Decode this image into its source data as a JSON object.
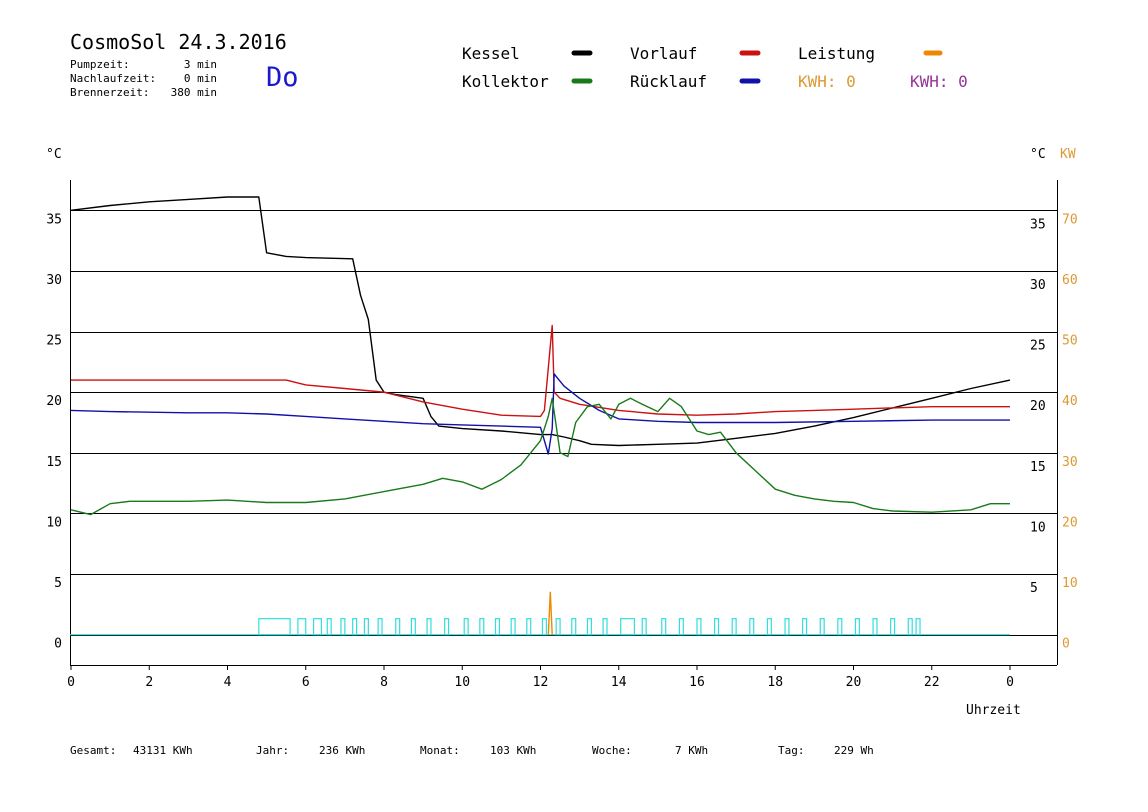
{
  "header": {
    "title": "CosmoSol 24.3.2016",
    "weekday": "Do",
    "info": [
      {
        "label": "Pumpzeit:",
        "value": "3 min"
      },
      {
        "label": "Nachlaufzeit:",
        "value": "0 min"
      },
      {
        "label": "Brennerzeit:",
        "value": "380 min"
      }
    ]
  },
  "legend": {
    "kessel": "Kessel",
    "kollektor": "Kollektor",
    "vorlauf": "Vorlauf",
    "ruecklauf": "Rücklauf",
    "leistung": "Leistung",
    "kwh_orange": "KWH: 0",
    "kwh_purple": "KWH: 0"
  },
  "colors": {
    "kessel": "#000000",
    "kollektor": "#1a7a1a",
    "vorlauf": "#cc1111",
    "ruecklauf": "#1111aa",
    "leistung": "#ee8800",
    "pump": "#33dddd",
    "kwh_orange": "#dd9933",
    "kwh_purple": "#993399",
    "weekday": "#1a1acc"
  },
  "footer": [
    {
      "label": "Gesamt:",
      "value": "43131 KWh"
    },
    {
      "label": "Jahr:",
      "value": "236 KWh"
    },
    {
      "label": "Monat:",
      "value": "103 KWh"
    },
    {
      "label": "Woche:",
      "value": "7 KWh"
    },
    {
      "label": "Tag:",
      "value": "229 Wh"
    }
  ],
  "chart_data": {
    "type": "line",
    "xlabel": "Uhrzeit",
    "ylabel_left": "°C",
    "ylabel_right_temp": "°C",
    "ylabel_right_power": "KW",
    "xlim": [
      0,
      24
    ],
    "ylim": [
      -2.5,
      37.5
    ],
    "x_ticks": [
      "0",
      "2",
      "4",
      "6",
      "8",
      "10",
      "12",
      "14",
      "16",
      "18",
      "20",
      "22",
      "0"
    ],
    "y_ticks_left": [
      "0",
      "5",
      "10",
      "15",
      "20",
      "25",
      "30",
      "35"
    ],
    "y_ticks_right": [
      "5",
      "10",
      "15",
      "20",
      "25",
      "30",
      "35"
    ],
    "y_ticks_power": [
      "0",
      "10",
      "20",
      "30",
      "40",
      "50",
      "60",
      "70"
    ],
    "grid": "horizontal",
    "series": [
      {
        "key": "kessel",
        "name": "Kessel",
        "points": [
          [
            0,
            35
          ],
          [
            1,
            35.4
          ],
          [
            2,
            35.7
          ],
          [
            3,
            35.9
          ],
          [
            4,
            36.1
          ],
          [
            4.8,
            36.1
          ],
          [
            5,
            31.5
          ],
          [
            5.5,
            31.2
          ],
          [
            6,
            31.1
          ],
          [
            7.2,
            31
          ],
          [
            7.4,
            28
          ],
          [
            7.6,
            26
          ],
          [
            7.8,
            21
          ],
          [
            8,
            20
          ],
          [
            8.3,
            19.8
          ],
          [
            9,
            19.5
          ],
          [
            9.2,
            18
          ],
          [
            9.4,
            17.2
          ],
          [
            10,
            17
          ],
          [
            11,
            16.8
          ],
          [
            12,
            16.5
          ],
          [
            12.15,
            16.5
          ],
          [
            12.3,
            16.5
          ],
          [
            12.6,
            16.3
          ],
          [
            13,
            16
          ],
          [
            13.3,
            15.7
          ],
          [
            14,
            15.6
          ],
          [
            15,
            15.7
          ],
          [
            16,
            15.8
          ],
          [
            17,
            16.2
          ],
          [
            18,
            16.6
          ],
          [
            19,
            17.2
          ],
          [
            20,
            17.9
          ],
          [
            21,
            18.7
          ],
          [
            22,
            19.5
          ],
          [
            23,
            20.3
          ],
          [
            24,
            21
          ]
        ]
      },
      {
        "key": "vorlauf",
        "name": "Vorlauf",
        "points": [
          [
            0,
            21
          ],
          [
            1,
            21
          ],
          [
            3,
            21
          ],
          [
            5.5,
            21
          ],
          [
            6,
            20.6
          ],
          [
            7,
            20.3
          ],
          [
            8,
            20
          ],
          [
            9,
            19.2
          ],
          [
            10,
            18.6
          ],
          [
            11,
            18.1
          ],
          [
            12,
            18
          ],
          [
            12.1,
            18.5
          ],
          [
            12.2,
            22
          ],
          [
            12.3,
            25.5
          ],
          [
            12.35,
            20
          ],
          [
            12.5,
            19.5
          ],
          [
            13,
            19
          ],
          [
            14,
            18.5
          ],
          [
            15,
            18.2
          ],
          [
            16,
            18.1
          ],
          [
            17,
            18.2
          ],
          [
            18,
            18.4
          ],
          [
            19,
            18.5
          ],
          [
            20,
            18.6
          ],
          [
            21,
            18.7
          ],
          [
            22,
            18.8
          ],
          [
            23,
            18.8
          ],
          [
            24,
            18.8
          ]
        ]
      },
      {
        "key": "ruecklauf",
        "name": "Rücklauf",
        "points": [
          [
            0,
            18.5
          ],
          [
            1,
            18.4
          ],
          [
            3,
            18.3
          ],
          [
            4,
            18.3
          ],
          [
            5,
            18.2
          ],
          [
            6,
            18
          ],
          [
            7,
            17.8
          ],
          [
            8,
            17.6
          ],
          [
            9,
            17.4
          ],
          [
            10,
            17.3
          ],
          [
            11,
            17.2
          ],
          [
            12,
            17.1
          ],
          [
            12.2,
            14.9
          ],
          [
            12.3,
            17
          ],
          [
            12.35,
            21.5
          ],
          [
            12.6,
            20.5
          ],
          [
            13,
            19.5
          ],
          [
            13.5,
            18.5
          ],
          [
            14,
            17.8
          ],
          [
            15,
            17.6
          ],
          [
            16,
            17.5
          ],
          [
            18,
            17.5
          ],
          [
            20,
            17.6
          ],
          [
            22,
            17.7
          ],
          [
            24,
            17.7
          ]
        ]
      },
      {
        "key": "kollektor",
        "name": "Kollektor",
        "points": [
          [
            0,
            10.3
          ],
          [
            0.5,
            9.9
          ],
          [
            1,
            10.8
          ],
          [
            1.5,
            11
          ],
          [
            2,
            11
          ],
          [
            3,
            11
          ],
          [
            4,
            11.1
          ],
          [
            4.5,
            11
          ],
          [
            5,
            10.9
          ],
          [
            6,
            10.9
          ],
          [
            7,
            11.2
          ],
          [
            8,
            11.8
          ],
          [
            9,
            12.4
          ],
          [
            9.5,
            12.9
          ],
          [
            10,
            12.6
          ],
          [
            10.5,
            12
          ],
          [
            11,
            12.8
          ],
          [
            11.5,
            14
          ],
          [
            12,
            16
          ],
          [
            12.2,
            18
          ],
          [
            12.3,
            19.5
          ],
          [
            12.5,
            15
          ],
          [
            12.7,
            14.7
          ],
          [
            12.9,
            17.5
          ],
          [
            13.2,
            18.8
          ],
          [
            13.5,
            19
          ],
          [
            13.8,
            17.8
          ],
          [
            14,
            19
          ],
          [
            14.3,
            19.5
          ],
          [
            14.6,
            19
          ],
          [
            15,
            18.4
          ],
          [
            15.3,
            19.5
          ],
          [
            15.6,
            18.8
          ],
          [
            16,
            16.8
          ],
          [
            16.3,
            16.5
          ],
          [
            16.6,
            16.7
          ],
          [
            17,
            15
          ],
          [
            17.5,
            13.5
          ],
          [
            18,
            12
          ],
          [
            18.5,
            11.5
          ],
          [
            19,
            11.2
          ],
          [
            19.5,
            11
          ],
          [
            20,
            10.9
          ],
          [
            20.5,
            10.4
          ],
          [
            21,
            10.2
          ],
          [
            22,
            10.1
          ],
          [
            23,
            10.3
          ],
          [
            23.5,
            10.8
          ],
          [
            24,
            10.8
          ]
        ]
      },
      {
        "key": "leistung",
        "name": "Leistung",
        "points": [
          [
            12.2,
            0
          ],
          [
            12.25,
            3.5
          ],
          [
            12.3,
            0
          ]
        ]
      }
    ],
    "pump": {
      "key": "pump",
      "baseline": 0,
      "pulses": [
        [
          4.8,
          5.6
        ],
        [
          5.8,
          6
        ],
        [
          6.2,
          6.4
        ],
        [
          6.55,
          6.65
        ],
        [
          6.9,
          7
        ],
        [
          7.2,
          7.3
        ],
        [
          7.5,
          7.6
        ],
        [
          7.85,
          7.95
        ],
        [
          8.3,
          8.4
        ],
        [
          8.7,
          8.8
        ],
        [
          9.1,
          9.2
        ],
        [
          9.55,
          9.65
        ],
        [
          10.05,
          10.15
        ],
        [
          10.45,
          10.55
        ],
        [
          10.85,
          10.95
        ],
        [
          11.25,
          11.35
        ],
        [
          11.65,
          11.75
        ],
        [
          12.05,
          12.15
        ],
        [
          12.4,
          12.5
        ],
        [
          12.8,
          12.9
        ],
        [
          13.2,
          13.3
        ],
        [
          13.6,
          13.7
        ],
        [
          14.05,
          14.4
        ],
        [
          14.6,
          14.7
        ],
        [
          15.1,
          15.2
        ],
        [
          15.55,
          15.65
        ],
        [
          16,
          16.1
        ],
        [
          16.45,
          16.55
        ],
        [
          16.9,
          17
        ],
        [
          17.35,
          17.45
        ],
        [
          17.8,
          17.9
        ],
        [
          18.25,
          18.35
        ],
        [
          18.7,
          18.8
        ],
        [
          19.15,
          19.25
        ],
        [
          19.6,
          19.7
        ],
        [
          20.05,
          20.15
        ],
        [
          20.5,
          20.6
        ],
        [
          20.95,
          21.05
        ],
        [
          21.4,
          21.5
        ],
        [
          21.6,
          21.7
        ]
      ]
    }
  }
}
